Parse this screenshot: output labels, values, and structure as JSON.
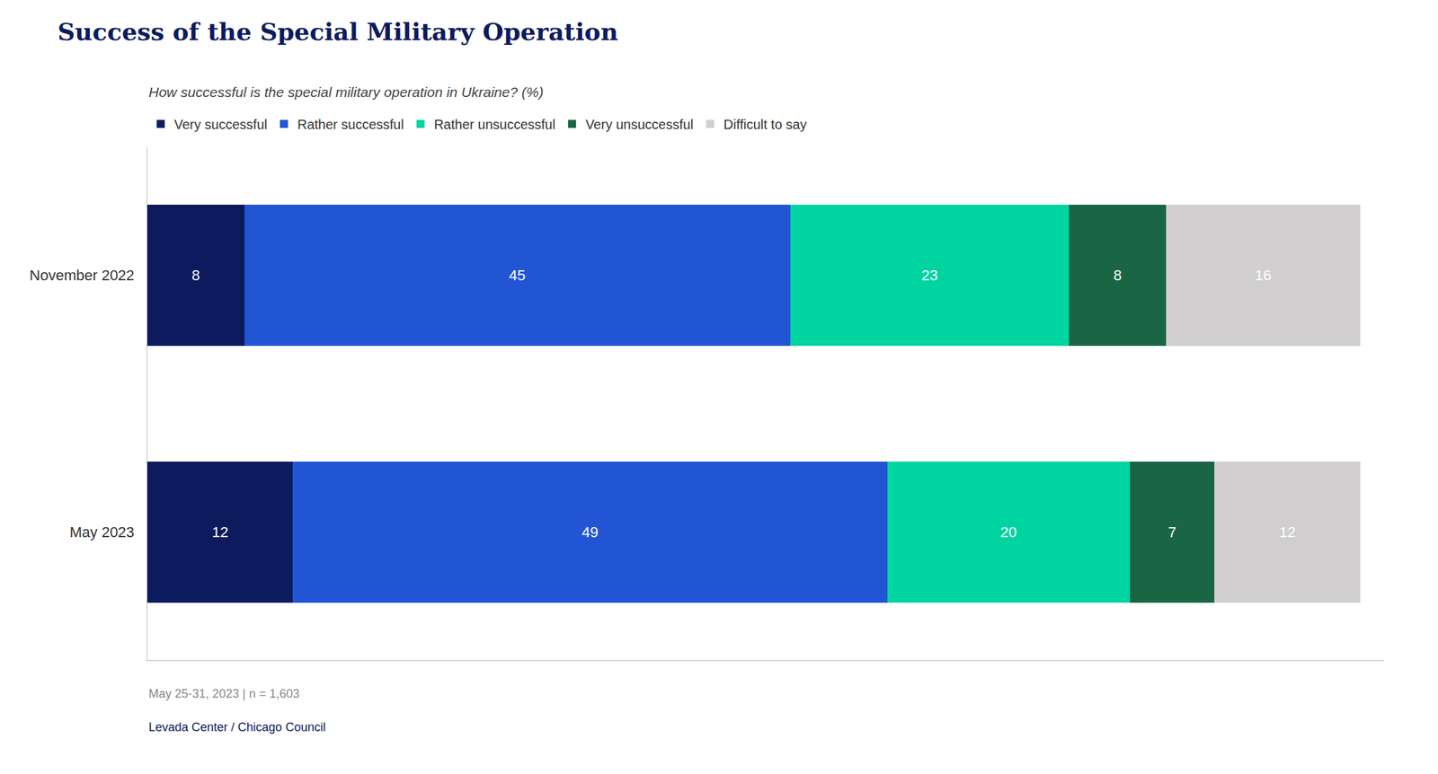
{
  "chart_data": {
    "type": "bar",
    "orientation": "horizontal",
    "stacked": true,
    "title": "Success of the Special Military Operation",
    "subtitle": "How successful is the special military operation in Ukraine? (%)",
    "annotations": [
      "May 25-31, 2023 | n = 1,603",
      "Levada Center / Chicago Council"
    ],
    "categories": [
      "November 2022",
      "May 2023"
    ],
    "series": [
      {
        "name": "Very successful",
        "color": "#0d1a5e",
        "values": [
          8,
          12
        ]
      },
      {
        "name": "Rather successful",
        "color": "#2255d4",
        "values": [
          45,
          49
        ]
      },
      {
        "name": "Rather unsuccessful",
        "color": "#00d4a0",
        "values": [
          23,
          20
        ]
      },
      {
        "name": "Very unsuccessful",
        "color": "#1a6644",
        "values": [
          8,
          7
        ]
      },
      {
        "name": "Difficult to say",
        "color": "#d0cece",
        "values": [
          16,
          12
        ]
      }
    ],
    "xlim": [
      0,
      102
    ],
    "data_labels": true,
    "tick_labels": "y",
    "legend": "top",
    "grid": false
  }
}
